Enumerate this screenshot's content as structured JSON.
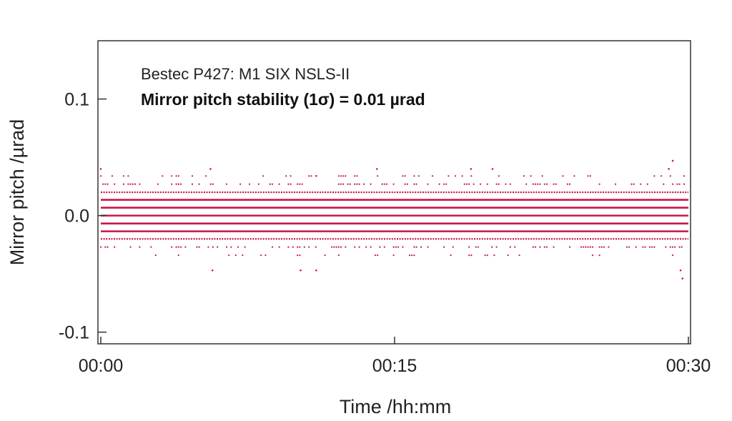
{
  "chart_data": {
    "type": "scatter",
    "title": "",
    "annotations": [
      "Bestec P427: M1 SIX NSLS-II",
      "Mirror pitch stability (1σ) = 0.01 µrad"
    ],
    "xlabel": "Time /hh:mm",
    "ylabel": "Mirror pitch /µrad",
    "x_unit": "minutes",
    "xlim": [
      0,
      30
    ],
    "ylim": [
      -0.11,
      0.15
    ],
    "x_ticks": [
      {
        "value": 0,
        "label": "00:00"
      },
      {
        "value": 15,
        "label": "00:15"
      },
      {
        "value": 30,
        "label": "00:30"
      }
    ],
    "y_ticks": [
      {
        "value": 0.1,
        "label": "0.1"
      },
      {
        "value": 0.0,
        "label": "0.0"
      },
      {
        "value": -0.1,
        "label": "-0.1"
      }
    ],
    "grid": false,
    "legend": "none",
    "marker_color": "#c8174a",
    "series": [
      {
        "dense_levels": [
          -0.0135,
          -0.0068,
          0.0,
          0.0068,
          0.0135
        ],
        "semi_dense_levels": [
          -0.02,
          0.02
        ],
        "sparse_levels": [
          -0.027,
          -0.034,
          0.027,
          0.034
        ],
        "outliers": [
          {
            "x": 0.0,
            "y": 0.04
          },
          {
            "x": 5.6,
            "y": 0.04
          },
          {
            "x": 11.0,
            "y": 0.034
          },
          {
            "x": 14.1,
            "y": 0.04
          },
          {
            "x": 18.9,
            "y": 0.04
          },
          {
            "x": 20.0,
            "y": 0.04
          },
          {
            "x": 29.0,
            "y": 0.04
          },
          {
            "x": 29.2,
            "y": 0.047
          },
          {
            "x": 5.7,
            "y": -0.047
          },
          {
            "x": 10.2,
            "y": -0.047
          },
          {
            "x": 11.0,
            "y": -0.047
          },
          {
            "x": 29.6,
            "y": -0.047
          },
          {
            "x": 29.7,
            "y": -0.054
          }
        ]
      }
    ]
  }
}
